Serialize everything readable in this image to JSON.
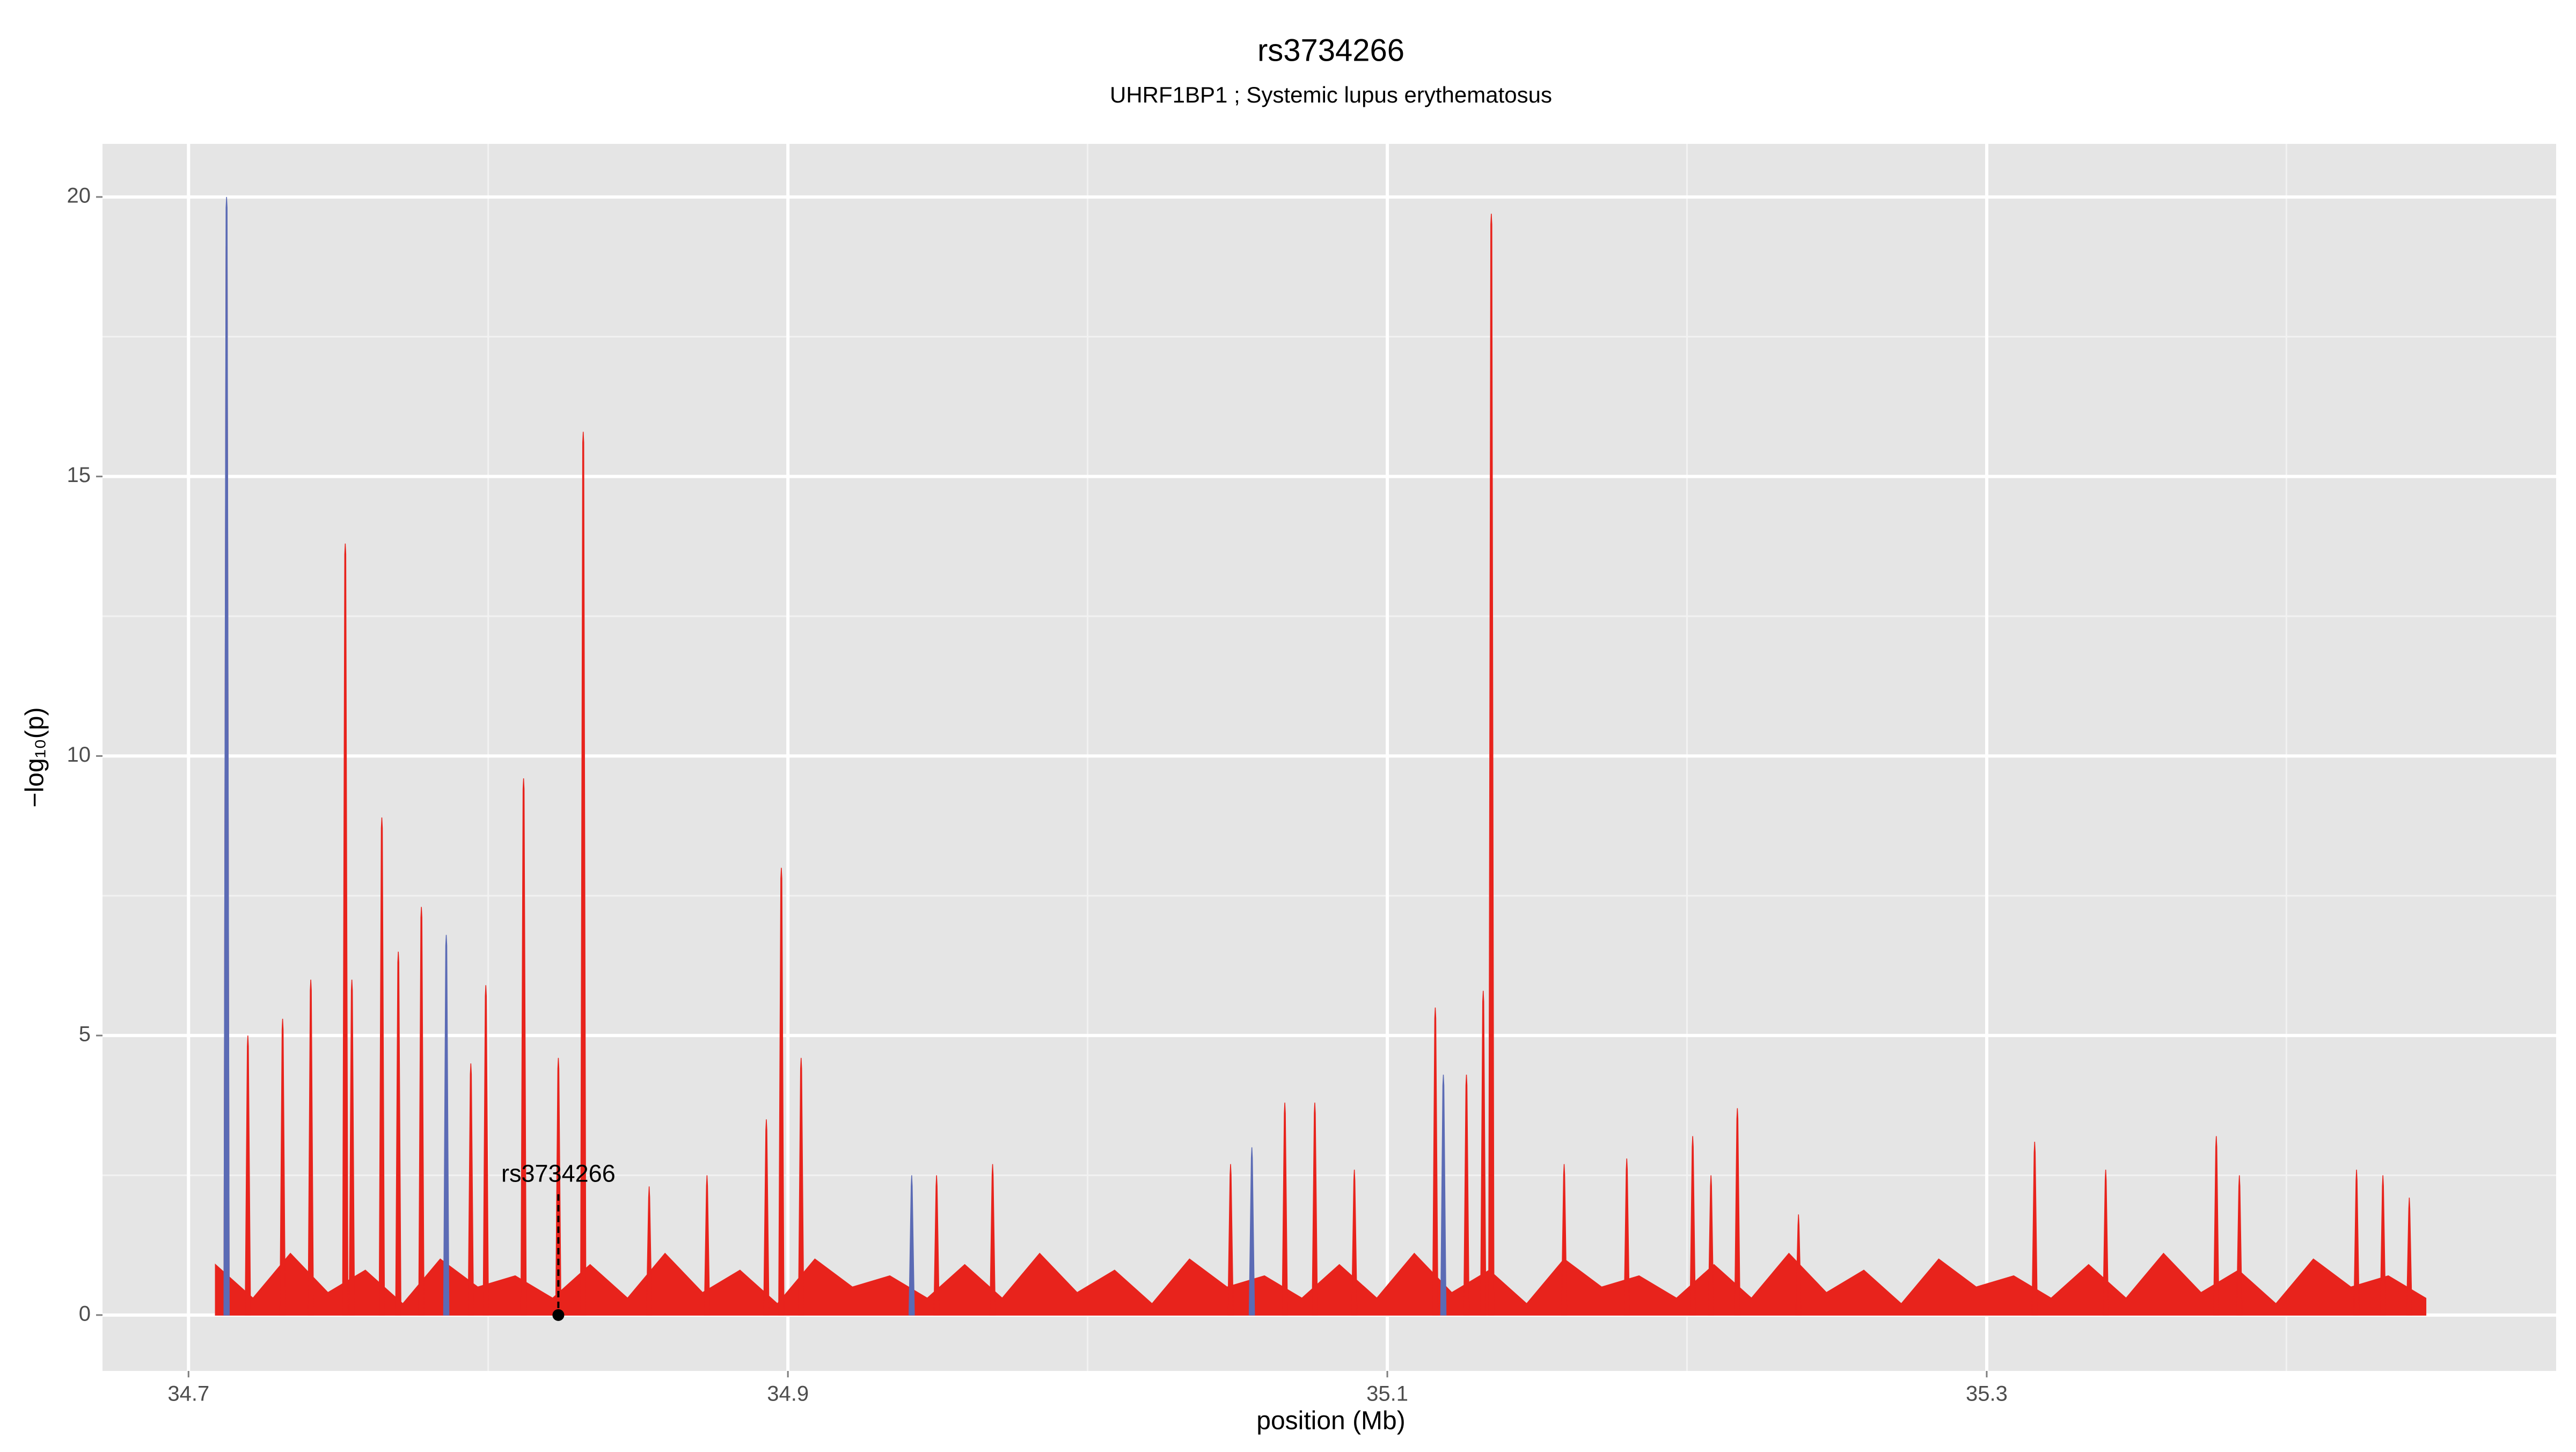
{
  "chart_data": {
    "type": "area",
    "title": "rs3734266",
    "subtitle": "UHRF1BP1 ; Systemic lupus erythematosus",
    "x_label": "position (Mb)",
    "y_label": "−log₁₀(p)",
    "xlim": [
      34.6713,
      35.49
    ],
    "ylim": [
      -1.0,
      20.95
    ],
    "xticks": [
      34.7,
      34.9,
      35.1,
      35.3
    ],
    "yticks": [
      0,
      5,
      10,
      15,
      20
    ],
    "xminor": [
      34.8,
      35.0,
      35.2,
      35.4
    ],
    "yminor": [
      2.5,
      7.5,
      12.5,
      17.5
    ],
    "grid": true,
    "series": [
      {
        "style": "area",
        "color": "#e8231c",
        "x": [
          34.709,
          34.7215,
          34.734,
          34.7465,
          34.759,
          34.7715,
          34.784,
          34.7965,
          34.809,
          34.8215,
          34.834,
          34.8465,
          34.859,
          34.8715,
          34.884,
          34.8965,
          34.909,
          34.9215,
          34.934,
          34.9465,
          34.959,
          34.9715,
          34.984,
          34.9965,
          35.009,
          35.0215,
          35.034,
          35.0465,
          35.059,
          35.0715,
          35.084,
          35.0965,
          35.109,
          35.1215,
          35.134,
          35.1465,
          35.159,
          35.1715,
          35.184,
          35.1965,
          35.209,
          35.2215,
          35.234,
          35.2465,
          35.259,
          35.2715,
          35.284,
          35.2965,
          35.309,
          35.3215,
          35.334,
          35.3465,
          35.359,
          35.3715,
          35.384,
          35.3965,
          35.409,
          35.4215,
          35.434,
          35.4465
        ],
        "values": [
          0.9,
          0.3,
          1.1,
          0.4,
          0.8,
          0.2,
          1.0,
          0.5,
          0.7,
          0.3,
          0.9,
          0.3,
          1.1,
          0.4,
          0.8,
          0.2,
          1.0,
          0.5,
          0.7,
          0.3,
          0.9,
          0.3,
          1.1,
          0.4,
          0.8,
          0.2,
          1.0,
          0.5,
          0.7,
          0.3,
          0.9,
          0.3,
          1.1,
          0.4,
          0.8,
          0.2,
          1.0,
          0.5,
          0.7,
          0.3,
          0.9,
          0.3,
          1.1,
          0.4,
          0.8,
          0.2,
          1.0,
          0.5,
          0.7,
          0.3,
          0.9,
          0.3,
          1.1,
          0.4,
          0.8,
          0.2,
          1.0,
          0.5,
          0.7,
          0.3
        ]
      },
      {
        "style": "spike",
        "color": "#e8231c",
        "x": [
          34.7127,
          34.7198,
          34.7314,
          34.7408,
          34.7523,
          34.7545,
          34.7645,
          34.77,
          34.7777,
          34.7942,
          34.7992,
          34.8118,
          34.8234,
          34.8317,
          34.8537,
          34.873,
          34.8928,
          34.8978,
          34.9044,
          34.9496,
          34.9683,
          35.0477,
          35.0658,
          35.0758,
          35.089,
          35.116,
          35.1264,
          35.132,
          35.1347,
          35.159,
          35.1799,
          35.2019,
          35.208,
          35.2168,
          35.2372,
          35.316,
          35.3397,
          35.3766,
          35.3843,
          35.4234,
          35.4322,
          35.441
        ],
        "values": [
          19.3,
          5.0,
          5.3,
          6.0,
          13.8,
          6.0,
          8.9,
          6.5,
          7.3,
          4.5,
          5.9,
          9.6,
          4.6,
          15.8,
          2.3,
          2.5,
          3.5,
          8.0,
          4.6,
          2.5,
          2.7,
          2.7,
          3.8,
          3.8,
          2.6,
          5.5,
          4.3,
          5.8,
          19.7,
          2.7,
          2.8,
          3.2,
          2.5,
          3.7,
          1.8,
          3.1,
          2.6,
          3.2,
          2.5,
          2.6,
          2.5,
          2.1
        ]
      },
      {
        "style": "spike",
        "color": "#5b6bb5",
        "x": [
          34.7127,
          34.786,
          34.9413,
          35.0548,
          35.1187
        ],
        "values": [
          20.0,
          6.8,
          2.5,
          3.0,
          4.3
        ]
      }
    ],
    "annotations": [
      {
        "text": "rs3734266",
        "x": 34.8234,
        "y": 0
      }
    ]
  }
}
